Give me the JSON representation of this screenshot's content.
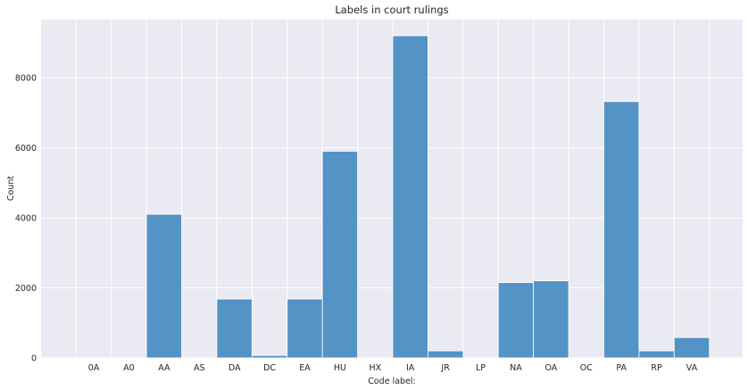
{
  "chart_data": {
    "type": "bar",
    "title": "Labels in court rulings",
    "xlabel": "Code label:",
    "ylabel": "Count",
    "categories": [
      "0A",
      "A0",
      "AA",
      "AS",
      "DA",
      "DC",
      "EA",
      "HU",
      "HX",
      "IA",
      "JR",
      "LP",
      "NA",
      "OA",
      "OC",
      "PA",
      "RP",
      "VA"
    ],
    "values": [
      2,
      2,
      4100,
      2,
      1680,
      70,
      1680,
      5900,
      2,
      9200,
      200,
      2,
      2150,
      2200,
      2,
      7320,
      200,
      580
    ],
    "yticks": [
      0,
      2000,
      4000,
      6000,
      8000
    ],
    "ylim": [
      0,
      9660
    ],
    "grid": true,
    "colors": {
      "bar_fill": "#4c8ec2",
      "bar_edge": "#ffffff",
      "background": "#eaeaf2",
      "grid": "#ffffff"
    }
  }
}
